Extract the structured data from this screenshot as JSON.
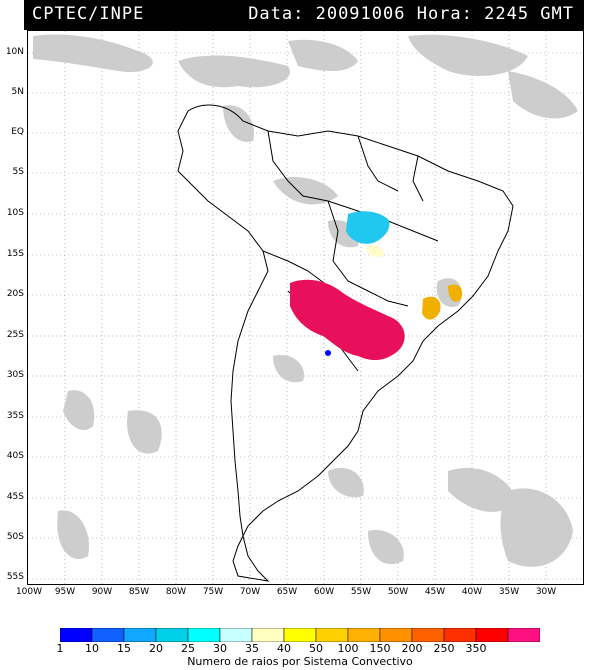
{
  "header": {
    "source": "CPTEC/INPE",
    "info": "Data: 20091006 Hora: 2245 GMT"
  },
  "lat_labels": [
    "10N",
    "5N",
    "EQ",
    "5S",
    "10S",
    "15S",
    "20S",
    "25S",
    "30S",
    "35S",
    "40S",
    "45S",
    "50S",
    "55S"
  ],
  "lon_labels": [
    "100W",
    "95W",
    "90W",
    "85W",
    "80W",
    "75W",
    "70W",
    "65W",
    "60W",
    "55W",
    "50W",
    "45W",
    "40W",
    "35W",
    "30W"
  ],
  "legend": {
    "labels": [
      "1",
      "10",
      "15",
      "20",
      "25",
      "30",
      "35",
      "40",
      "50",
      "100",
      "150",
      "200",
      "250",
      "350"
    ],
    "colors": [
      "#0000ff",
      "#1060ff",
      "#10a8ff",
      "#00d0e8",
      "#00ffff",
      "#c8ffff",
      "#ffffc0",
      "#ffff00",
      "#ffd000",
      "#ffb000",
      "#ff9000",
      "#ff6000",
      "#ff3000",
      "#ff0000",
      "#ff1080"
    ],
    "title": "Numero de raios por Sistema Convectivo"
  },
  "colors": {
    "cloud": "#c8c8c8",
    "cluster_magenta": "#e8105a",
    "cluster_cyan": "#20c8f0",
    "cluster_yellow": "#f0b000",
    "cluster_paleyellow": "#fffccc"
  }
}
